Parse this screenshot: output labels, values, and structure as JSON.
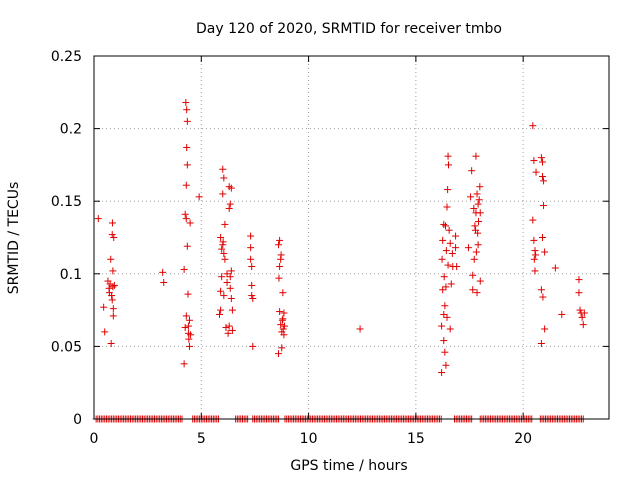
{
  "chart_data": {
    "type": "scatter",
    "title": "Day 120 of 2020, SRMTID for receiver tmbo",
    "xlabel": "GPS time / hours",
    "ylabel": "SRMTID / TECUs",
    "xlim": [
      0,
      24
    ],
    "ylim": [
      0,
      0.25
    ],
    "xticks": [
      0,
      5,
      10,
      15,
      20
    ],
    "yticks": [
      0,
      0.05,
      0.1,
      0.15,
      0.2,
      0.25
    ],
    "ytick_labels": [
      "0",
      "0.05",
      "0.1",
      "0.15",
      "0.2",
      "0.25"
    ],
    "grid": true,
    "marker": "plus",
    "series": [
      {
        "name": "SRMTID",
        "color": "#e00000",
        "zero_ranges": [
          [
            0.1,
            4.1
          ],
          [
            4.6,
            5.8
          ],
          [
            6.6,
            7.2
          ],
          [
            7.4,
            8.6
          ],
          [
            8.9,
            16.2
          ],
          [
            16.8,
            17.6
          ],
          [
            18.0,
            20.4
          ],
          [
            20.8,
            22.8
          ]
        ],
        "points": [
          [
            0.2,
            0.138
          ],
          [
            0.45,
            0.077
          ],
          [
            0.5,
            0.06
          ],
          [
            0.65,
            0.095
          ],
          [
            0.7,
            0.09
          ],
          [
            0.72,
            0.087
          ],
          [
            0.75,
            0.093
          ],
          [
            0.78,
            0.11
          ],
          [
            0.8,
            0.052
          ],
          [
            0.82,
            0.085
          ],
          [
            0.85,
            0.082
          ],
          [
            0.85,
            0.127
          ],
          [
            0.86,
            0.135
          ],
          [
            0.88,
            0.091
          ],
          [
            0.88,
            0.102
          ],
          [
            0.9,
            0.076
          ],
          [
            0.9,
            0.071
          ],
          [
            0.92,
            0.125
          ],
          [
            0.95,
            0.092
          ],
          [
            3.2,
            0.101
          ],
          [
            3.25,
            0.094
          ],
          [
            4.2,
            0.038
          ],
          [
            4.2,
            0.103
          ],
          [
            4.25,
            0.141
          ],
          [
            4.25,
            0.063
          ],
          [
            4.28,
            0.218
          ],
          [
            4.3,
            0.138
          ],
          [
            4.3,
            0.071
          ],
          [
            4.3,
            0.161
          ],
          [
            4.32,
            0.213
          ],
          [
            4.32,
            0.187
          ],
          [
            4.35,
            0.205
          ],
          [
            4.35,
            0.175
          ],
          [
            4.35,
            0.119
          ],
          [
            4.38,
            0.086
          ],
          [
            4.4,
            0.064
          ],
          [
            4.4,
            0.059
          ],
          [
            4.42,
            0.055
          ],
          [
            4.45,
            0.05
          ],
          [
            4.45,
            0.068
          ],
          [
            4.48,
            0.135
          ],
          [
            4.5,
            0.058
          ],
          [
            4.9,
            0.153
          ],
          [
            5.85,
            0.072
          ],
          [
            5.9,
            0.125
          ],
          [
            5.9,
            0.088
          ],
          [
            5.9,
            0.075
          ],
          [
            5.95,
            0.117
          ],
          [
            5.95,
            0.098
          ],
          [
            6.0,
            0.172
          ],
          [
            6.0,
            0.155
          ],
          [
            6.0,
            0.12
          ],
          [
            6.02,
            0.122
          ],
          [
            6.05,
            0.166
          ],
          [
            6.05,
            0.114
          ],
          [
            6.05,
            0.085
          ],
          [
            6.1,
            0.134
          ],
          [
            6.1,
            0.11
          ],
          [
            6.15,
            0.063
          ],
          [
            6.2,
            0.094
          ],
          [
            6.2,
            0.1
          ],
          [
            6.25,
            0.059
          ],
          [
            6.3,
            0.16
          ],
          [
            6.3,
            0.145
          ],
          [
            6.3,
            0.064
          ],
          [
            6.35,
            0.148
          ],
          [
            6.35,
            0.098
          ],
          [
            6.35,
            0.09
          ],
          [
            6.4,
            0.102
          ],
          [
            6.4,
            0.159
          ],
          [
            6.4,
            0.083
          ],
          [
            6.45,
            0.075
          ],
          [
            6.45,
            0.061
          ],
          [
            7.3,
            0.126
          ],
          [
            7.3,
            0.118
          ],
          [
            7.3,
            0.11
          ],
          [
            7.35,
            0.105
          ],
          [
            7.35,
            0.092
          ],
          [
            7.35,
            0.085
          ],
          [
            7.4,
            0.083
          ],
          [
            7.4,
            0.05
          ],
          [
            8.6,
            0.045
          ],
          [
            8.6,
            0.12
          ],
          [
            8.62,
            0.097
          ],
          [
            8.65,
            0.123
          ],
          [
            8.65,
            0.105
          ],
          [
            8.65,
            0.074
          ],
          [
            8.7,
            0.11
          ],
          [
            8.7,
            0.065
          ],
          [
            8.72,
            0.113
          ],
          [
            8.75,
            0.049
          ],
          [
            8.75,
            0.06
          ],
          [
            8.78,
            0.068
          ],
          [
            8.8,
            0.087
          ],
          [
            8.8,
            0.069
          ],
          [
            8.82,
            0.062
          ],
          [
            8.85,
            0.058
          ],
          [
            8.85,
            0.073
          ],
          [
            8.88,
            0.064
          ],
          [
            12.4,
            0.062
          ],
          [
            16.2,
            0.032
          ],
          [
            16.2,
            0.064
          ],
          [
            16.22,
            0.11
          ],
          [
            16.25,
            0.123
          ],
          [
            16.25,
            0.089
          ],
          [
            16.3,
            0.072
          ],
          [
            16.3,
            0.054
          ],
          [
            16.3,
            0.134
          ],
          [
            16.32,
            0.098
          ],
          [
            16.35,
            0.078
          ],
          [
            16.35,
            0.046
          ],
          [
            16.38,
            0.133
          ],
          [
            16.4,
            0.091
          ],
          [
            16.4,
            0.037
          ],
          [
            16.42,
            0.116
          ],
          [
            16.45,
            0.146
          ],
          [
            16.45,
            0.07
          ],
          [
            16.48,
            0.158
          ],
          [
            16.5,
            0.181
          ],
          [
            16.5,
            0.106
          ],
          [
            16.52,
            0.175
          ],
          [
            16.55,
            0.13
          ],
          [
            16.6,
            0.062
          ],
          [
            16.6,
            0.121
          ],
          [
            16.65,
            0.093
          ],
          [
            16.7,
            0.114
          ],
          [
            16.72,
            0.105
          ],
          [
            16.85,
            0.126
          ],
          [
            16.85,
            0.118
          ],
          [
            16.9,
            0.105
          ],
          [
            17.45,
            0.118
          ],
          [
            17.55,
            0.153
          ],
          [
            17.6,
            0.171
          ],
          [
            17.65,
            0.099
          ],
          [
            17.65,
            0.089
          ],
          [
            17.7,
            0.145
          ],
          [
            17.72,
            0.11
          ],
          [
            17.75,
            0.133
          ],
          [
            17.78,
            0.13
          ],
          [
            17.8,
            0.181
          ],
          [
            17.8,
            0.142
          ],
          [
            17.82,
            0.115
          ],
          [
            17.85,
            0.087
          ],
          [
            17.85,
            0.155
          ],
          [
            17.88,
            0.128
          ],
          [
            17.9,
            0.12
          ],
          [
            17.9,
            0.148
          ],
          [
            17.92,
            0.136
          ],
          [
            17.95,
            0.151
          ],
          [
            17.98,
            0.16
          ],
          [
            18.0,
            0.095
          ],
          [
            18.0,
            0.142
          ],
          [
            20.45,
            0.202
          ],
          [
            20.45,
            0.137
          ],
          [
            20.5,
            0.178
          ],
          [
            20.5,
            0.123
          ],
          [
            20.52,
            0.11
          ],
          [
            20.55,
            0.116
          ],
          [
            20.55,
            0.102
          ],
          [
            20.58,
            0.113
          ],
          [
            20.6,
            0.17
          ],
          [
            20.85,
            0.18
          ],
          [
            20.85,
            0.089
          ],
          [
            20.85,
            0.052
          ],
          [
            20.9,
            0.177
          ],
          [
            20.9,
            0.167
          ],
          [
            20.9,
            0.125
          ],
          [
            20.92,
            0.084
          ],
          [
            20.95,
            0.164
          ],
          [
            20.95,
            0.147
          ],
          [
            21.0,
            0.115
          ],
          [
            21.0,
            0.062
          ],
          [
            21.5,
            0.104
          ],
          [
            21.8,
            0.072
          ],
          [
            22.6,
            0.096
          ],
          [
            22.6,
            0.087
          ],
          [
            22.65,
            0.075
          ],
          [
            22.7,
            0.073
          ],
          [
            22.75,
            0.07
          ],
          [
            22.8,
            0.065
          ],
          [
            22.85,
            0.073
          ]
        ]
      }
    ]
  }
}
